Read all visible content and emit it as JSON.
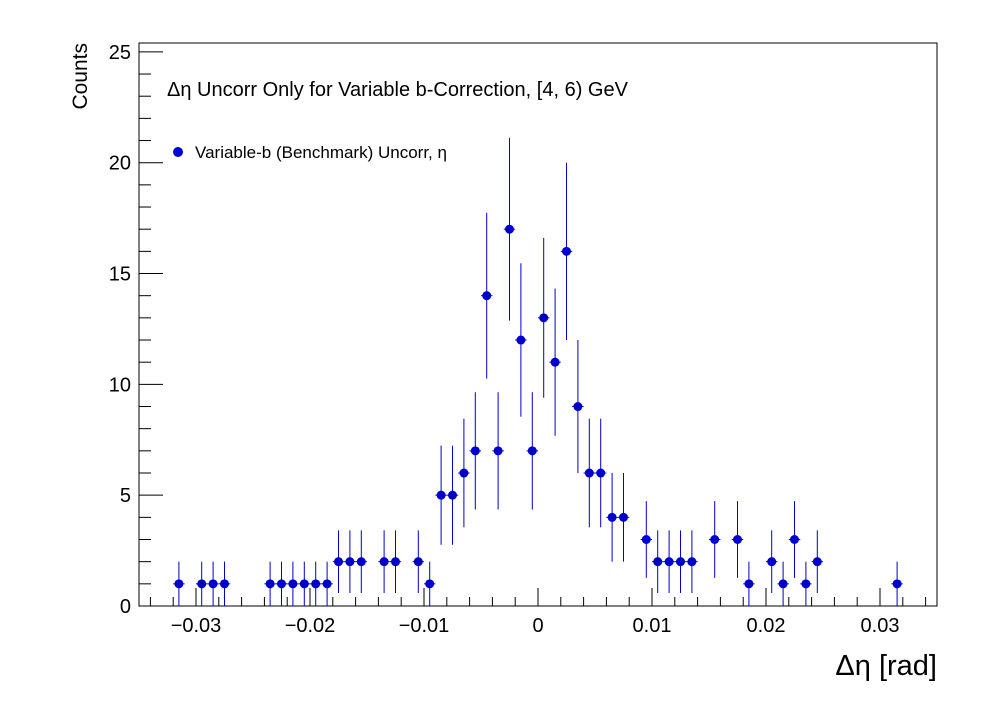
{
  "chart_data": {
    "type": "scatter",
    "title": "Δη Uncorr Only for Variable b-Correction, [4, 6) GeV",
    "xlabel": "Δη  [rad]",
    "ylabel": "Counts",
    "xlim": [
      -0.035,
      0.035
    ],
    "ylim": [
      0,
      25.4
    ],
    "x_ticks": [
      -0.03,
      -0.02,
      -0.01,
      0,
      0.01,
      0.02,
      0.03
    ],
    "x_tick_labels": [
      "−0.03",
      "−0.02",
      "−0.01",
      "0",
      "0.01",
      "0.02",
      "0.03"
    ],
    "y_ticks": [
      0,
      5,
      10,
      15,
      20,
      25
    ],
    "y_tick_labels": [
      "0",
      "5",
      "10",
      "15",
      "20",
      "25"
    ],
    "grid": false,
    "legend_position": "top-left",
    "colors": {
      "marker": "#0000cc",
      "axis": "#000000"
    },
    "series": [
      {
        "name": "Variable-b (Benchmark) Uncorr, η",
        "x": [
          -0.0315,
          -0.0295,
          -0.0285,
          -0.0275,
          -0.0235,
          -0.0225,
          -0.0215,
          -0.0205,
          -0.0195,
          -0.0185,
          -0.0175,
          -0.0165,
          -0.0155,
          -0.0135,
          -0.0125,
          -0.0105,
          -0.0095,
          -0.0085,
          -0.0075,
          -0.0065,
          -0.0055,
          -0.0045,
          -0.0035,
          -0.0025,
          -0.0015,
          -0.0005,
          0.0005,
          0.0015,
          0.0025,
          0.0035,
          0.0045,
          0.0055,
          0.0065,
          0.0075,
          0.0095,
          0.0105,
          0.0115,
          0.0125,
          0.0135,
          0.0155,
          0.0175,
          0.0185,
          0.0205,
          0.0215,
          0.0225,
          0.0235,
          0.0245,
          0.0315
        ],
        "y": [
          1,
          1,
          1,
          1,
          1,
          1,
          1,
          1,
          1,
          1,
          2,
          2,
          2,
          2,
          2,
          2,
          1,
          5,
          5,
          6,
          7,
          14,
          7,
          17,
          12,
          7,
          13,
          11,
          16,
          9,
          6,
          6,
          4,
          4,
          3,
          2,
          2,
          2,
          2,
          3,
          3,
          1,
          2,
          1,
          3,
          1,
          2,
          1
        ]
      }
    ]
  }
}
